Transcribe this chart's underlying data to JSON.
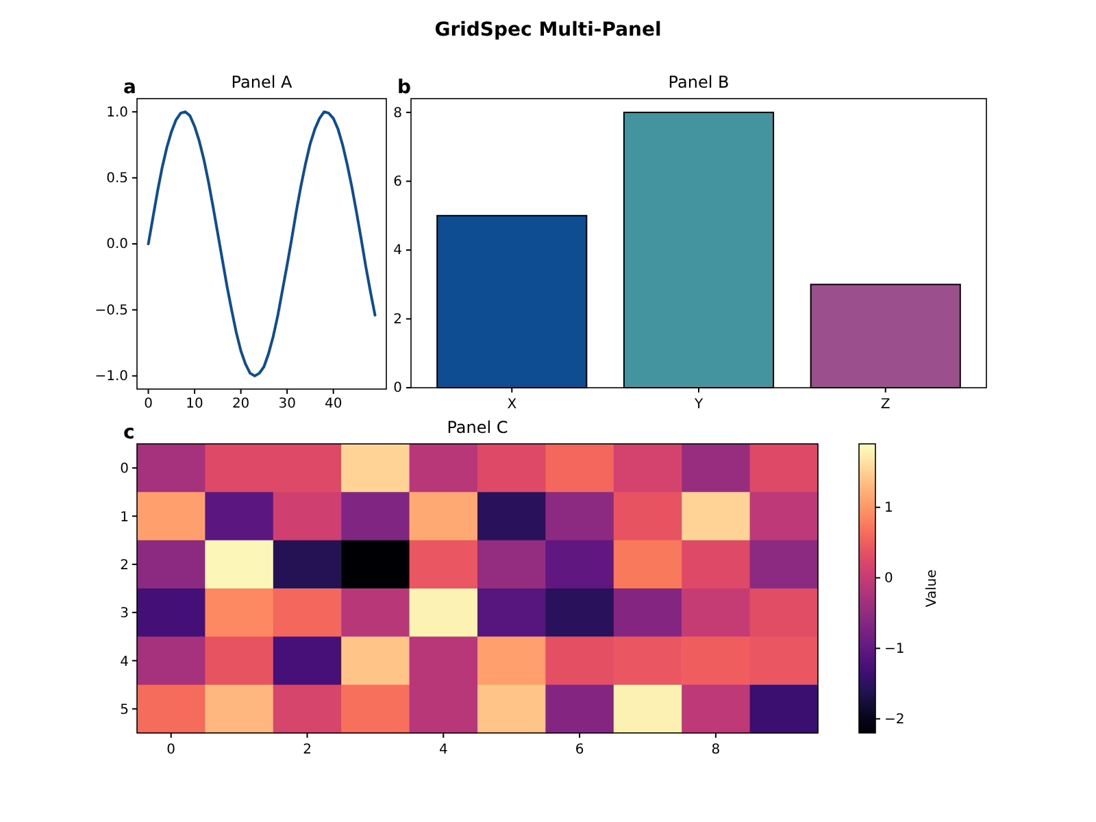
{
  "chart_data": [
    {
      "type": "line",
      "title": "Panel A",
      "annotations": [
        "a",
        "GridSpec Multi-Panel"
      ],
      "x": [
        0,
        1,
        2,
        3,
        4,
        5,
        6,
        7,
        8,
        9,
        10,
        11,
        12,
        13,
        14,
        15,
        16,
        17,
        18,
        19,
        20,
        21,
        22,
        23,
        24,
        25,
        26,
        27,
        28,
        29,
        30,
        31,
        32,
        33,
        34,
        35,
        36,
        37,
        38,
        39,
        40,
        41,
        42,
        43,
        44,
        45,
        46,
        47,
        48,
        49
      ],
      "values": [
        0,
        0.2,
        0.4,
        0.58,
        0.73,
        0.85,
        0.94,
        0.99,
        1,
        0.97,
        0.89,
        0.78,
        0.64,
        0.47,
        0.28,
        0.08,
        -0.12,
        -0.32,
        -0.5,
        -0.67,
        -0.81,
        -0.91,
        -0.98,
        -1,
        -0.98,
        -0.93,
        -0.83,
        -0.7,
        -0.54,
        -0.35,
        -0.16,
        0.04,
        0.25,
        0.44,
        0.61,
        0.76,
        0.87,
        0.95,
        1,
        0.99,
        0.95,
        0.87,
        0.75,
        0.6,
        0.43,
        0.24,
        0.04,
        -0.17,
        -0.36,
        -0.54
      ],
      "color": "#0e4d8f",
      "xlim": [
        -2.45,
        51.45
      ],
      "xticks": [
        0,
        10,
        20,
        30,
        40
      ],
      "ylim": [
        -1.1,
        1.1
      ],
      "yticks": [
        {
          "value": -1,
          "label": "−1.0"
        },
        {
          "value": -0.5,
          "label": "−0.5"
        },
        {
          "value": 0,
          "label": "0.0"
        },
        {
          "value": 0.5,
          "label": "0.5"
        },
        {
          "value": 1,
          "label": "1.0"
        }
      ]
    },
    {
      "type": "bar",
      "title": "Panel B",
      "annotations": [
        "b"
      ],
      "categories": [
        "X",
        "Y",
        "Z"
      ],
      "values": [
        5,
        8,
        3
      ],
      "colors": [
        "#0e4d92",
        "#43949e",
        "#9b4f8c"
      ],
      "ylim": [
        0,
        8.4
      ],
      "yticks": [
        0,
        2,
        4,
        6,
        8
      ]
    },
    {
      "type": "heatmap",
      "title": "Panel C",
      "annotations": [
        "c"
      ],
      "clabel": "Value",
      "categories": [
        "0",
        null,
        "2",
        null,
        "4",
        null,
        "6",
        null,
        "8",
        null
      ],
      "y_categories": [
        "0",
        "1",
        "2",
        "3",
        "4",
        "5"
      ],
      "cells": [
        [
          -0.3,
          0.26,
          0.26,
          1.53,
          -0.15,
          0.26,
          0.59,
          0.14,
          -0.44,
          0.26
        ],
        [
          1.08,
          -1.05,
          0.1,
          -0.68,
          1.16,
          -1.54,
          -0.56,
          0.38,
          1.53,
          -0.07
        ],
        [
          -0.56,
          1.82,
          -1.59,
          -2.2,
          0.42,
          -0.48,
          -1.01,
          0.75,
          0.26,
          -0.56
        ],
        [
          -1.3,
          0.88,
          0.59,
          -0.15,
          1.8,
          -1.1,
          -1.54,
          -0.64,
          0,
          0.3
        ],
        [
          -0.3,
          0.38,
          -1.26,
          1.4,
          -0.15,
          1.08,
          0.34,
          0.42,
          0.5,
          0.42
        ],
        [
          0.63,
          1.29,
          0.18,
          0.67,
          -0.15,
          1.4,
          -0.64,
          1.78,
          -0.07,
          -1.38
        ]
      ],
      "clim": [
        -2.2,
        1.9
      ],
      "cticks": [
        {
          "value": -2,
          "label": "−2"
        },
        {
          "value": -1,
          "label": "−1"
        },
        {
          "value": 0,
          "label": "0"
        },
        {
          "value": 1,
          "label": "1"
        }
      ]
    }
  ]
}
